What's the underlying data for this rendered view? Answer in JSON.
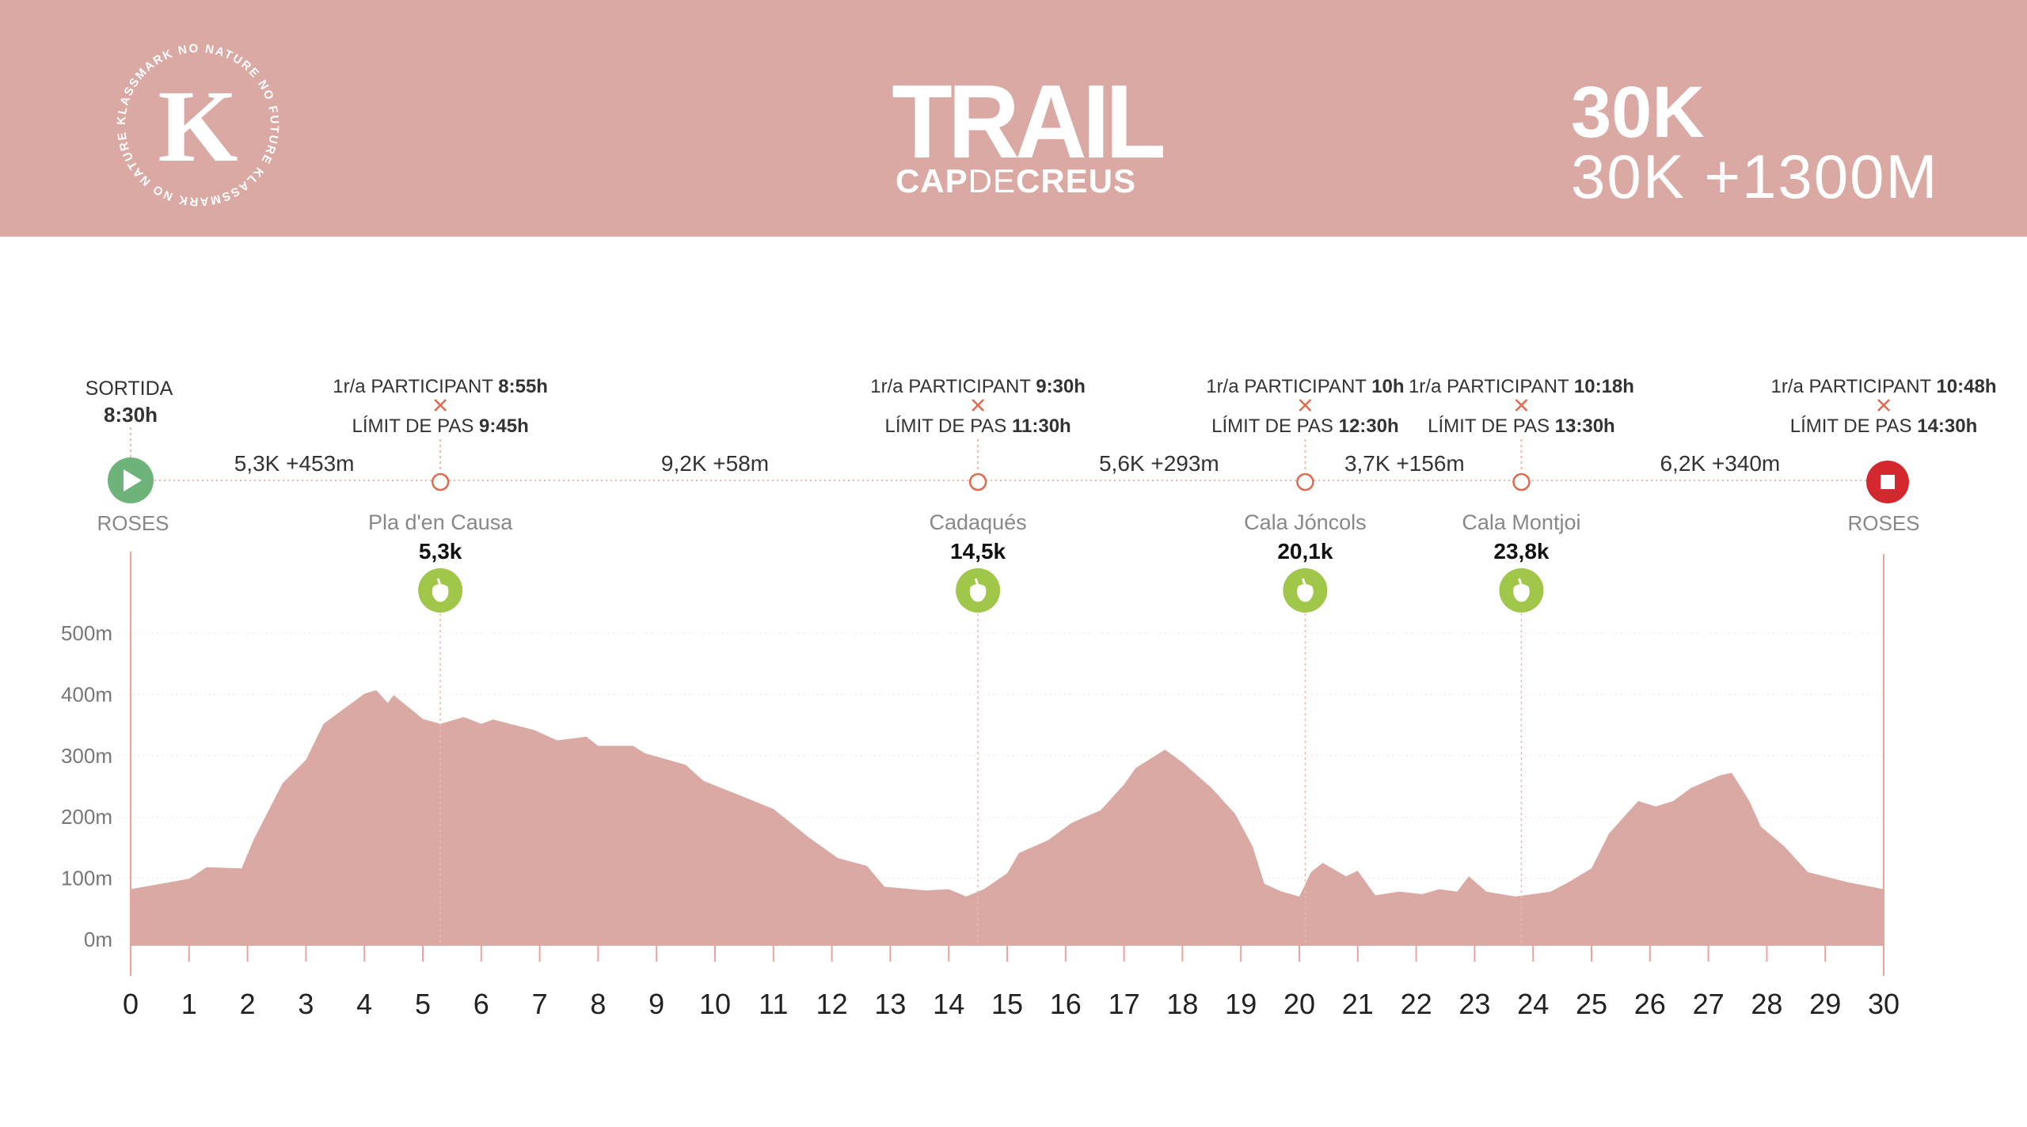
{
  "header": {
    "logo_text": "KLASSMARK NO NATURE NO FUTURE KLASSMARK NO NATURE NO FUTURE",
    "logo_letter": "K",
    "title": "TRAIL",
    "subtitle_a": "CAP",
    "subtitle_b": "DE",
    "subtitle_c": "CREUS",
    "distance": "30K",
    "distance_detail": "30K +1300M"
  },
  "start": {
    "label": "SORTIDA",
    "time": "8:30h",
    "place": "ROSES",
    "color": "#6db37a"
  },
  "finish": {
    "place": "ROSES",
    "color": "#d3282e"
  },
  "segments": [
    "5,3K +453m",
    "9,2K +58m",
    "5,6K +293m",
    "3,7K +156m",
    "6,2K +340m"
  ],
  "checkpoints": [
    {
      "first_label": "1r/a PARTICIPANT",
      "first_time": "8:55h",
      "limit_label": "LÍMIT DE PAS",
      "limit_time": "9:45h",
      "name": "Pla d'en Causa",
      "km_label": "5,3k",
      "km": 5.3,
      "aid": true
    },
    {
      "first_label": "1r/a PARTICIPANT",
      "first_time": "9:30h",
      "limit_label": "LÍMIT DE PAS",
      "limit_time": "11:30h",
      "name": "Cadaqués",
      "km_label": "14,5k",
      "km": 14.5,
      "aid": true
    },
    {
      "first_label": "1r/a PARTICIPANT",
      "first_time": "10h",
      "limit_label": "LÍMIT DE PAS",
      "limit_time": "12:30h",
      "name": "Cala Jóncols",
      "km_label": "20,1k",
      "km": 20.1,
      "aid": true
    },
    {
      "first_label": "1r/a PARTICIPANT",
      "first_time": "10:18h",
      "limit_label": "LÍMIT DE PAS",
      "limit_time": "13:30h",
      "name": "Cala Montjoi",
      "km_label": "23,8k",
      "km": 23.8,
      "aid": true
    },
    {
      "first_label": "1r/a PARTICIPANT",
      "first_time": "10:48h",
      "limit_label": "LÍMIT DE PAS",
      "limit_time": "14:30h",
      "km": 30,
      "aid": false
    }
  ],
  "colors": {
    "accent": "#dba9a3",
    "marker": "#e06a4e",
    "aid": "#a0c64a",
    "text": "#333333",
    "muted": "#888888"
  },
  "chart_data": {
    "type": "area",
    "title": "",
    "xlabel": "",
    "ylabel": "",
    "xlim": [
      0,
      30
    ],
    "ylim": [
      0,
      500
    ],
    "x_ticks": [
      0,
      1,
      2,
      3,
      4,
      5,
      6,
      7,
      8,
      9,
      10,
      11,
      12,
      13,
      14,
      15,
      16,
      17,
      18,
      19,
      20,
      21,
      22,
      23,
      24,
      25,
      26,
      27,
      28,
      29,
      30
    ],
    "y_ticks": [
      0,
      100,
      200,
      300,
      400,
      500
    ],
    "y_tick_labels": [
      "0m",
      "100m",
      "200m",
      "300m",
      "400m",
      "500m"
    ],
    "series": [
      {
        "name": "elevation",
        "x": [
          0,
          1.0,
          1.3,
          1.9,
          2.1,
          2.6,
          3.0,
          3.3,
          4.0,
          4.2,
          4.4,
          4.5,
          5.0,
          5.3,
          5.7,
          6.0,
          6.2,
          6.9,
          7.3,
          7.8,
          8.0,
          8.6,
          8.8,
          9.5,
          9.8,
          10.4,
          11.0,
          11.3,
          11.6,
          12.1,
          12.6,
          12.9,
          13.6,
          14.0,
          14.3,
          14.6,
          15.0,
          15.2,
          15.7,
          16.1,
          16.6,
          17.0,
          17.2,
          17.7,
          18.0,
          18.5,
          18.9,
          19.2,
          19.4,
          19.7,
          20.0,
          20.2,
          20.4,
          20.8,
          21.0,
          21.3,
          21.7,
          22.1,
          22.4,
          22.7,
          22.9,
          23.2,
          23.7,
          24.3,
          24.6,
          25.0,
          25.3,
          25.8,
          26.1,
          26.4,
          26.7,
          27.2,
          27.4,
          27.7,
          27.9,
          28.3,
          28.7,
          29.4,
          30.0
        ],
        "y": [
          82,
          99,
          118,
          116,
          162,
          255,
          293,
          352,
          401,
          407,
          386,
          399,
          360,
          352,
          363,
          352,
          359,
          342,
          325,
          331,
          316,
          316,
          304,
          285,
          259,
          236,
          213,
          190,
          167,
          133,
          120,
          86,
          80,
          82,
          70,
          82,
          108,
          141,
          162,
          190,
          211,
          253,
          280,
          310,
          289,
          247,
          205,
          152,
          91,
          78,
          70,
          110,
          125,
          103,
          112,
          72,
          78,
          74,
          82,
          78,
          103,
          78,
          70,
          78,
          93,
          116,
          173,
          226,
          217,
          226,
          247,
          268,
          272,
          226,
          184,
          152,
          110,
          93,
          82
        ]
      }
    ]
  }
}
